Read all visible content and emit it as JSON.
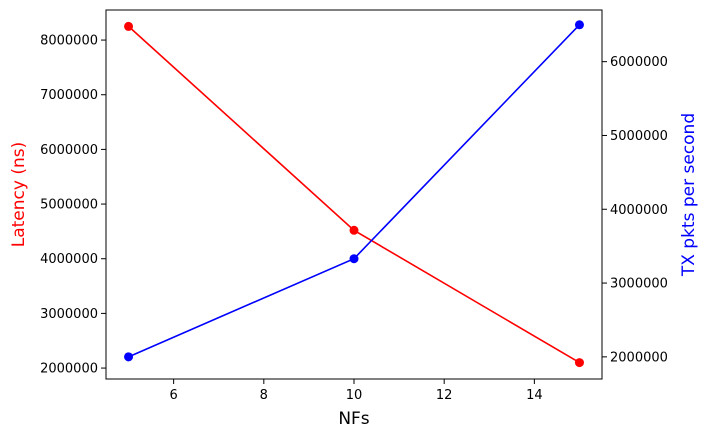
{
  "chart_data": {
    "type": "line",
    "title": "",
    "xlabel": "NFs",
    "ylabel_left": "Latency (ns)",
    "ylabel_right": "TX pkts per second",
    "xlim": [
      4.5,
      15.5
    ],
    "ylim_left": [
      1800000,
      8550000
    ],
    "ylim_right": [
      1700000,
      6700000
    ],
    "x_ticks": [
      "6",
      "8",
      "10",
      "12",
      "14"
    ],
    "y_ticks_left": [
      "2000000",
      "3000000",
      "4000000",
      "5000000",
      "6000000",
      "7000000",
      "8000000"
    ],
    "y_ticks_right": [
      "2000000",
      "3000000",
      "4000000",
      "5000000",
      "6000000"
    ],
    "grid": false,
    "colors": {
      "latency": "#ff0000",
      "tx": "#0000ff"
    },
    "series": [
      {
        "axis": "left",
        "color": "#ff0000",
        "x": [
          5,
          10,
          15
        ],
        "values": [
          8250000,
          4520000,
          2100000
        ]
      },
      {
        "axis": "right",
        "color": "#0000ff",
        "x": [
          5,
          10,
          15
        ],
        "values": [
          2000000,
          3330000,
          6500000
        ]
      }
    ]
  }
}
